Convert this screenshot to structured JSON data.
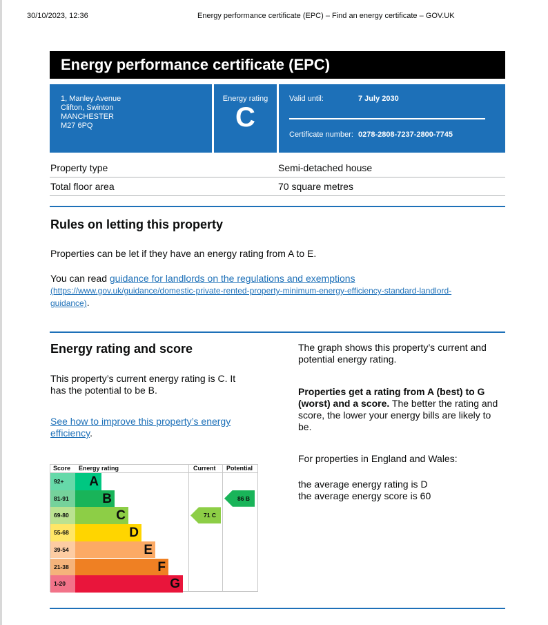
{
  "browser_header": {
    "datetime": "30/10/2023, 12:36",
    "page_title": "Energy performance certificate (EPC) – Find an energy certificate – GOV.UK"
  },
  "title": "Energy performance certificate (EPC)",
  "address": [
    "1, Manley Avenue",
    "Clifton, Swinton",
    "MANCHESTER",
    "M27 6PQ"
  ],
  "rating_box": {
    "label": "Energy rating",
    "value": "C"
  },
  "validity": {
    "label": "Valid until:",
    "value": "7 July 2030",
    "cert_label": "Certificate number:",
    "cert_value": "0278-2808-7237-2800-7745"
  },
  "properties": [
    {
      "label": "Property type",
      "value": "Semi-detached house"
    },
    {
      "label": "Total floor area",
      "value": "70 square metres"
    }
  ],
  "letting": {
    "heading": "Rules on letting this property",
    "para1": "Properties can be let if they have an energy rating from A to E.",
    "para2_prefix": "You can read ",
    "link": "guidance for landlords on the regulations and exemptions",
    "url_line1": "(https://www.gov.uk/guidance/domestic-private-rented-property-minimum-energy-efficiency-standard-landlord-",
    "url_line2": "guidance)",
    "suffix": "."
  },
  "score": {
    "heading": "Energy rating and score",
    "para1": "This property’s current energy rating is C. It has the potential to be B.",
    "link": "See how to improve this property’s energy efficiency",
    "link_suffix": ".",
    "right_para1": "The graph shows this property’s current and potential energy rating.",
    "right_bold": "Properties get a rating from A (best) to G (worst) and a score.",
    "right_para2": " The better the rating and score, the lower your energy bills are likely to be.",
    "right_para3": "For properties in England and Wales:",
    "avg1": "the average energy rating is D",
    "avg2": "the average energy score is 60"
  },
  "chart": {
    "headers": {
      "score": "Score",
      "rating": "Energy rating",
      "current": "Current",
      "potential": "Potential"
    },
    "bands": [
      {
        "score": "92+",
        "letter": "A",
        "color": "#00c781",
        "score_bg": "#66d9a9"
      },
      {
        "score": "81-91",
        "letter": "B",
        "color": "#19b459",
        "score_bg": "#75d29b"
      },
      {
        "score": "69-80",
        "letter": "C",
        "color": "#8dce46",
        "score_bg": "#bbe290"
      },
      {
        "score": "55-68",
        "letter": "D",
        "color": "#ffd500",
        "score_bg": "#ffe666"
      },
      {
        "score": "39-54",
        "letter": "E",
        "color": "#fcaa65",
        "score_bg": "#fdcca3"
      },
      {
        "score": "21-38",
        "letter": "F",
        "color": "#ef8023",
        "score_bg": "#f5b37b"
      },
      {
        "score": "1-20",
        "letter": "G",
        "color": "#e9153b",
        "score_bg": "#f27389"
      }
    ],
    "current": {
      "label": "71 C",
      "band": "C",
      "color": "#8dce46"
    },
    "potential": {
      "label": "86 B",
      "band": "B",
      "color": "#19b459"
    }
  }
}
